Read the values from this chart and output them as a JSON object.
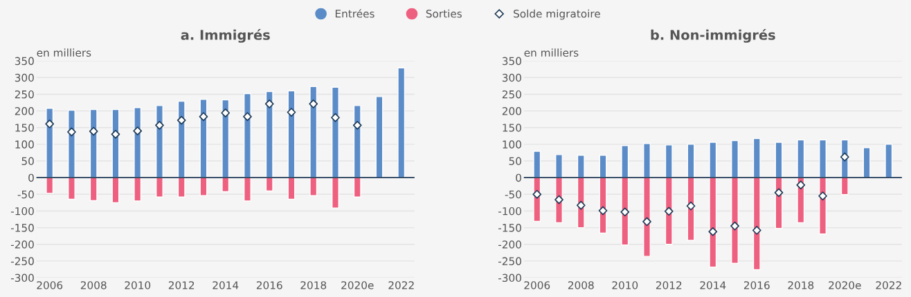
{
  "chart_data": [
    {
      "type": "bar",
      "title": "a. Immigrés",
      "ylabel": "en milliers",
      "stacked": true,
      "legend": "top",
      "grid": "y",
      "marker": "diamond",
      "categories": [
        "2006",
        null,
        "2008",
        null,
        "2010",
        null,
        "2012",
        null,
        "2014",
        null,
        "2016",
        null,
        "2018",
        null,
        "2020e",
        null,
        "2022"
      ],
      "ylim": [
        -300,
        350
      ],
      "yticks": [
        -300,
        -250,
        -200,
        -150,
        -100,
        -50,
        0,
        50,
        100,
        150,
        200,
        250,
        300,
        350
      ],
      "series": [
        {
          "name": "Entrées",
          "color": "#5b8cc8",
          "values": [
            208,
            202,
            204,
            204,
            210,
            216,
            229,
            235,
            233,
            252,
            258,
            260,
            273,
            271,
            216,
            243,
            329
          ]
        },
        {
          "name": "Sorties",
          "color": "#ee6080",
          "values": [
            -47,
            -65,
            -69,
            -75,
            -70,
            -58,
            -58,
            -54,
            -42,
            -70,
            -40,
            -65,
            -54,
            -91,
            -58,
            null,
            null
          ]
        },
        {
          "name": "Solde migratoire",
          "type": "scatter",
          "color": "#ffffff",
          "values": [
            161,
            137,
            139,
            130,
            140,
            157,
            172,
            183,
            194,
            183,
            221,
            196,
            221,
            180,
            157,
            null,
            null
          ]
        }
      ]
    },
    {
      "type": "bar",
      "title": "b. Non-immigrés",
      "ylabel": "en milliers",
      "stacked": true,
      "grid": "y",
      "marker": "diamond",
      "categories": [
        "2006",
        null,
        "2008",
        null,
        "2010",
        null,
        "2012",
        null,
        "2014",
        null,
        "2016",
        null,
        "2018",
        null,
        "2020e",
        null,
        "2022"
      ],
      "ylim": [
        -300,
        350
      ],
      "yticks": [
        -300,
        -250,
        -200,
        -150,
        -100,
        -50,
        0,
        50,
        100,
        150,
        200,
        250,
        300,
        350
      ],
      "series": [
        {
          "color": "#5b8cc8",
          "values": [
            79,
            69,
            67,
            67,
            96,
            102,
            98,
            100,
            106,
            111,
            117,
            106,
            113,
            113,
            113,
            90,
            100
          ]
        },
        {
          "color": "#ee6080",
          "values": [
            -131,
            -135,
            -150,
            -166,
            -202,
            -236,
            -200,
            -188,
            -268,
            -257,
            -276,
            -152,
            -135,
            -169,
            -51,
            null,
            null
          ]
        },
        {
          "type": "scatter",
          "color": "#ffffff",
          "values": [
            -50,
            -66,
            -83,
            -99,
            -103,
            -132,
            -101,
            -85,
            -162,
            -145,
            -158,
            -45,
            -22,
            -55,
            62,
            null,
            null
          ]
        }
      ]
    }
  ]
}
